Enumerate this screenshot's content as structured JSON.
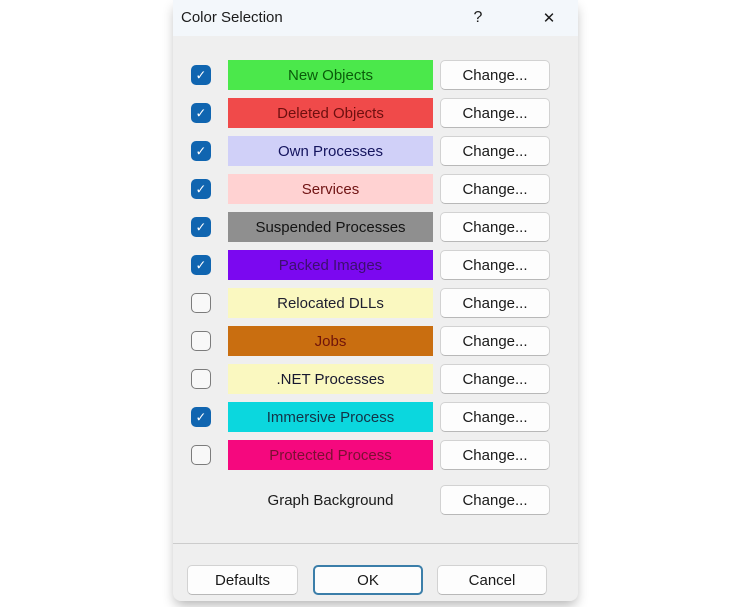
{
  "dialog": {
    "title": "Color Selection",
    "help_glyph": "?",
    "close_glyph": "✕"
  },
  "glyphs": {
    "check": "✓"
  },
  "accent": {
    "checkbox_blue": "#1065b0",
    "ok_focus_border": "#3b7ea9"
  },
  "rows": [
    {
      "label": "New Objects",
      "checked": true,
      "swatch_color": "#4be84b",
      "label_color": "#0a5c0a",
      "change": "Change..."
    },
    {
      "label": "Deleted Objects",
      "checked": true,
      "swatch_color": "#f04a4a",
      "label_color": "#6e0f0f",
      "change": "Change..."
    },
    {
      "label": "Own Processes",
      "checked": true,
      "swatch_color": "#d0d0f8",
      "label_color": "#14145e",
      "change": "Change..."
    },
    {
      "label": "Services",
      "checked": true,
      "swatch_color": "#ffd2d2",
      "label_color": "#701414",
      "change": "Change..."
    },
    {
      "label": "Suspended Processes",
      "checked": true,
      "swatch_color": "#8f8f8f",
      "label_color": "#141414",
      "change": "Change..."
    },
    {
      "label": "Packed Images",
      "checked": true,
      "swatch_color": "#7b08f0",
      "label_color": "#3c0f6e",
      "change": "Change..."
    },
    {
      "label": "Relocated DLLs",
      "checked": false,
      "swatch_color": "#faf8c0",
      "label_color": "#202030",
      "change": "Change..."
    },
    {
      "label": "Jobs",
      "checked": false,
      "swatch_color": "#c96e10",
      "label_color": "#70140a",
      "change": "Change..."
    },
    {
      "label": ".NET Processes",
      "checked": false,
      "swatch_color": "#faf8c0",
      "label_color": "#181830",
      "change": "Change..."
    },
    {
      "label": "Immersive Process",
      "checked": true,
      "swatch_color": "#0bd7de",
      "label_color": "#143246",
      "change": "Change..."
    },
    {
      "label": "Protected Process",
      "checked": false,
      "swatch_color": "#f5087e",
      "label_color": "#7a1032",
      "change": "Change..."
    }
  ],
  "graph_background": {
    "label": "Graph Background",
    "change": "Change..."
  },
  "footer": {
    "defaults": "Defaults",
    "ok": "OK",
    "cancel": "Cancel"
  }
}
